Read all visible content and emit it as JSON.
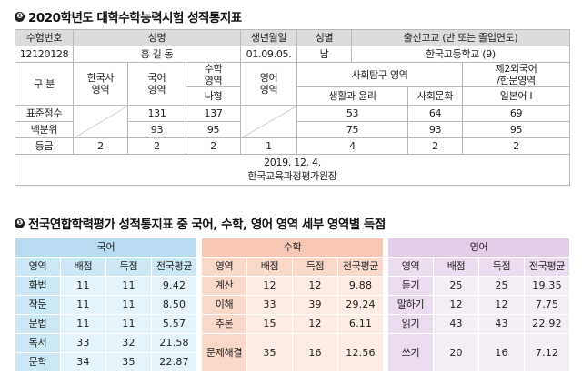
{
  "section1": {
    "bullet": "❶",
    "title": "2020학년도 대학수학능력시험 성적통지표",
    "header": {
      "exam_no": "수험번호",
      "name": "성명",
      "birth": "생년월일",
      "gender": "성별",
      "school": "출신고교 (반 또는 졸업연도)"
    },
    "student": {
      "exam_no": "12120128",
      "name": "홍 길 동",
      "birth": "01.09.05.",
      "gender": "남",
      "school": "한국고등학교 (9)"
    },
    "subjects": {
      "label": "구 분",
      "history_l1": "한국사",
      "history_l2": "영역",
      "korean_l1": "국어",
      "korean_l2": "영역",
      "math_l1": "수학",
      "math_l2": "영역",
      "math_type": "나형",
      "english_l1": "영어",
      "english_l2": "영역",
      "social": "사회탐구 영역",
      "social_1": "생활과 윤리",
      "social_2": "사회문화",
      "second_l1": "제2외국어",
      "second_l2": "/한문영역",
      "second_sub": "일본어 Ⅰ"
    },
    "rows": {
      "standard": {
        "label": "표준점수",
        "korean": "131",
        "math": "137",
        "s1": "53",
        "s2": "64",
        "second": "69"
      },
      "percentile": {
        "label": "백분위",
        "korean": "93",
        "math": "95",
        "s1": "75",
        "s2": "93",
        "second": "95"
      },
      "grade": {
        "label": "등급",
        "history": "2",
        "korean": "2",
        "math": "2",
        "english": "1",
        "s1": "4",
        "s2": "2",
        "second": "2"
      }
    },
    "footer": {
      "date": "2019. 12. 4.",
      "issuer": "한국교육과정평가원장"
    }
  },
  "section2": {
    "bullet": "❶",
    "title": "전국연합학력평가 성적통지표 중 국어, 수학, 영어 영역 세부 영역별 득점",
    "korean": {
      "title": "국어",
      "cols": [
        "영역",
        "배점",
        "득점",
        "전국평균"
      ],
      "rows": [
        [
          "화법",
          "11",
          "11",
          "9.42"
        ],
        [
          "작문",
          "11",
          "11",
          "8.50"
        ],
        [
          "문법",
          "11",
          "11",
          "5.57"
        ],
        [
          "독서",
          "33",
          "32",
          "21.58"
        ],
        [
          "문학",
          "34",
          "35",
          "22.87"
        ]
      ]
    },
    "math": {
      "title": "수학",
      "cols": [
        "영역",
        "배점",
        "득점",
        "전국평균"
      ],
      "rows": [
        [
          "계산",
          "12",
          "12",
          "9.88"
        ],
        [
          "이해",
          "33",
          "39",
          "29.24"
        ],
        [
          "추론",
          "15",
          "12",
          "6.11"
        ],
        [
          "문제해결",
          "35",
          "16",
          "12.56"
        ]
      ]
    },
    "english": {
      "title": "영어",
      "cols": [
        "영역",
        "배점",
        "득점",
        "전국평균"
      ],
      "rows": [
        [
          "듣기",
          "25",
          "25",
          "19.35"
        ],
        [
          "말하기",
          "12",
          "12",
          "7.75"
        ],
        [
          "읽기",
          "43",
          "43",
          "22.92"
        ],
        [
          "쓰기",
          "20",
          "16",
          "7.12"
        ]
      ]
    }
  }
}
